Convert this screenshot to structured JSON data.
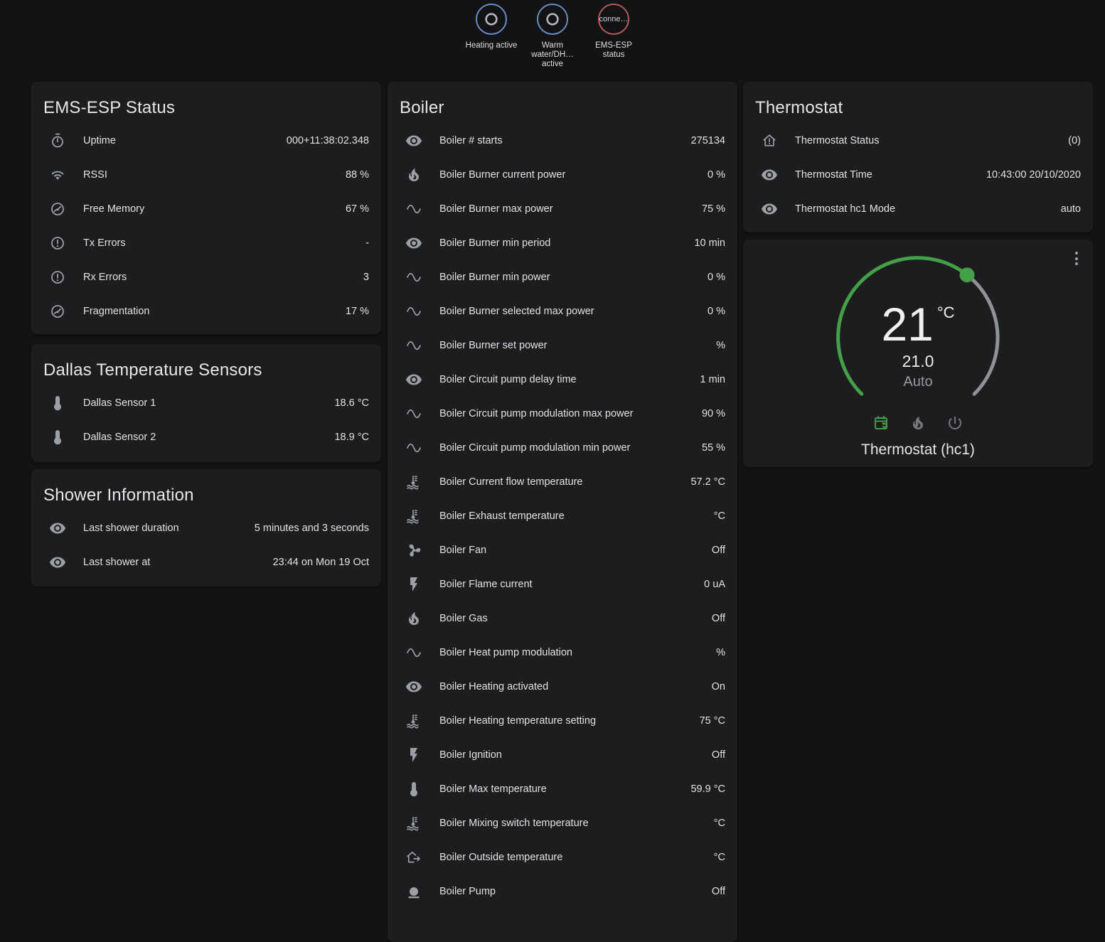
{
  "theme": {
    "accent_green": "#43a047",
    "badge_blue": "#6a8dc3",
    "badge_red": "#b35b5b",
    "dial_track_gray": "#909396"
  },
  "badges": [
    {
      "id": "heating-active",
      "label": "Heating active",
      "icon": "ring",
      "border_color": "#6a8dc3"
    },
    {
      "id": "warm-water-active",
      "label": "Warm water/DH… active",
      "icon": "ring",
      "border_color": "#6a8dc3"
    },
    {
      "id": "ems-esp-status",
      "label": "EMS-ESP status",
      "circle_text": "conne…",
      "border_color": "#b35b5b"
    }
  ],
  "cards": {
    "ems_status": {
      "title": "EMS-ESP Status",
      "rows": [
        {
          "icon": "timer",
          "label": "Uptime",
          "value": "000+11:38:02.348"
        },
        {
          "icon": "wifi",
          "label": "RSSI",
          "value": "88 %"
        },
        {
          "icon": "gauge",
          "label": "Free Memory",
          "value": "67 %"
        },
        {
          "icon": "alert-circle",
          "label": "Tx Errors",
          "value": "-"
        },
        {
          "icon": "alert-circle",
          "label": "Rx Errors",
          "value": "3"
        },
        {
          "icon": "gauge",
          "label": "Fragmentation",
          "value": "17 %"
        }
      ]
    },
    "dallas": {
      "title": "Dallas Temperature Sensors",
      "rows": [
        {
          "icon": "thermometer",
          "label": "Dallas Sensor 1",
          "value": "18.6 °C"
        },
        {
          "icon": "thermometer",
          "label": "Dallas Sensor 2",
          "value": "18.9 °C"
        }
      ]
    },
    "shower": {
      "title": "Shower Information",
      "rows": [
        {
          "icon": "eye",
          "label": "Last shower duration",
          "value": "5 minutes and 3 seconds"
        },
        {
          "icon": "eye",
          "label": "Last shower at",
          "value": "23:44 on Mon 19 Oct"
        }
      ]
    },
    "boiler": {
      "title": "Boiler",
      "rows": [
        {
          "icon": "eye",
          "label": "Boiler # starts",
          "value": "275134"
        },
        {
          "icon": "fire",
          "label": "Boiler Burner current power",
          "value": "0 %"
        },
        {
          "icon": "sine-wave",
          "label": "Boiler Burner max power",
          "value": "75 %"
        },
        {
          "icon": "eye",
          "label": "Boiler Burner min period",
          "value": "10 min"
        },
        {
          "icon": "sine-wave",
          "label": "Boiler Burner min power",
          "value": "0 %"
        },
        {
          "icon": "sine-wave",
          "label": "Boiler Burner selected max power",
          "value": "0 %"
        },
        {
          "icon": "sine-wave",
          "label": "Boiler Burner set power",
          "value": "%"
        },
        {
          "icon": "eye",
          "label": "Boiler Circuit pump delay time",
          "value": "1 min"
        },
        {
          "icon": "sine-wave",
          "label": "Boiler Circuit pump modulation max power",
          "value": "90 %"
        },
        {
          "icon": "sine-wave",
          "label": "Boiler Circuit pump modulation min power",
          "value": "55 %"
        },
        {
          "icon": "thermometer-water",
          "label": "Boiler Current flow temperature",
          "value": "57.2 °C"
        },
        {
          "icon": "thermometer-water",
          "label": "Boiler Exhaust temperature",
          "value": "°C"
        },
        {
          "icon": "fan",
          "label": "Boiler Fan",
          "value": "Off"
        },
        {
          "icon": "flash",
          "label": "Boiler Flame current",
          "value": "0 uA"
        },
        {
          "icon": "fire",
          "label": "Boiler Gas",
          "value": "Off"
        },
        {
          "icon": "sine-wave",
          "label": "Boiler Heat pump modulation",
          "value": "%"
        },
        {
          "icon": "eye",
          "label": "Boiler Heating activated",
          "value": "On"
        },
        {
          "icon": "thermometer-water",
          "label": "Boiler Heating temperature setting",
          "value": "75 °C"
        },
        {
          "icon": "flash",
          "label": "Boiler Ignition",
          "value": "Off"
        },
        {
          "icon": "thermometer",
          "label": "Boiler Max temperature",
          "value": "59.9 °C"
        },
        {
          "icon": "thermometer-water",
          "label": "Boiler Mixing switch temperature",
          "value": "°C"
        },
        {
          "icon": "home-export",
          "label": "Boiler Outside temperature",
          "value": "°C"
        },
        {
          "icon": "pump",
          "label": "Boiler Pump",
          "value": "Off"
        }
      ]
    },
    "thermostat_info": {
      "title": "Thermostat",
      "rows": [
        {
          "icon": "home-alert",
          "label": "Thermostat Status",
          "value": "(0)"
        },
        {
          "icon": "eye",
          "label": "Thermostat Time",
          "value": "10:43:00 20/10/2020"
        },
        {
          "icon": "eye",
          "label": "Thermostat hc1 Mode",
          "value": "auto"
        }
      ]
    },
    "dial": {
      "current": "21",
      "unit": "°C",
      "setpoint": "21.0",
      "mode_label": "Auto",
      "name": "Thermostat (hc1)"
    }
  }
}
